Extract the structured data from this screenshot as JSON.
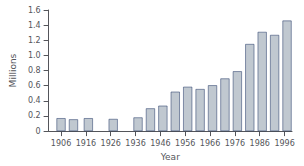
{
  "chart_data": {
    "type": "bar",
    "x": [
      1906,
      1911,
      1917,
      1927,
      1937,
      1942,
      1947,
      1952,
      1957,
      1962,
      1967,
      1972,
      1977,
      1982,
      1987,
      1992,
      1997
    ],
    "values": [
      0.17,
      0.155,
      0.17,
      0.16,
      0.18,
      0.3,
      0.335,
      0.52,
      0.585,
      0.555,
      0.605,
      0.695,
      0.79,
      1.15,
      1.31,
      1.27,
      1.46
    ],
    "color": "#c0c8d0",
    "xlabel": "Year",
    "ylabel": "Millions",
    "xlim": [
      1901,
      1999
    ],
    "xticks": [
      1906,
      1916,
      1926,
      1936,
      1946,
      1956,
      1966,
      1976,
      1986,
      1996
    ],
    "ylim": [
      0,
      1.6
    ],
    "yticks": [
      0,
      0.2,
      0.4,
      0.6,
      0.8,
      {
        "value": 1,
        "label": "1.0"
      },
      1.2,
      1.4,
      1.6
    ],
    "grid": false
  }
}
